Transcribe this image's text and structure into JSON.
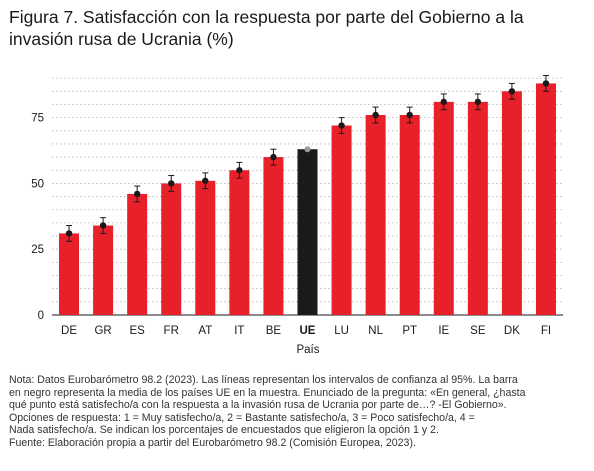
{
  "title": "Figura 7. Satisfacción con la respuesta por parte del Gobierno a la invasión rusa de Ucrania (%)",
  "note": [
    "Nota: Datos Eurobarómetro 98.2 (2023). Las líneas representan los intervalos de confianza al 95%. La barra",
    "en negro representa la media de los países UE en la muestra. Enunciado de la pregunta: «En general, ¿hasta",
    "qué punto está satisfecho/a con la respuesta a la invasión rusa de Ucrania por parte de…? -El Gobierno».",
    "Opciones de respuesta: 1 = Muy satisfecho/a, 2 = Bastante satisfecho/a, 3 = Poco satisfecho/a, 4 =",
    "Nada satisfecho/a. Se indican los porcentajes de encuestados que eligieron la opción 1 y 2.",
    "Fuente: Elaboración propia a partir del Eurobarómetro 98.2 (Comisión Europea, 2023)."
  ],
  "colors": {
    "bar": "#e8202a",
    "highlight": "#1a1a1a",
    "point": "#1a1a1a",
    "grid": "#b0b0b0"
  },
  "chart_data": {
    "type": "bar",
    "title": "Figura 7. Satisfacción con la respuesta por parte del Gobierno a la invasión rusa de Ucrania (%)",
    "xlabel": "País",
    "ylabel": "",
    "ylim": [
      0,
      95
    ],
    "yticks": [
      0,
      25,
      50,
      75
    ],
    "grid": true,
    "legend": "none",
    "categories": [
      "DE",
      "GR",
      "ES",
      "FR",
      "AT",
      "IT",
      "BE",
      "UE",
      "LU",
      "NL",
      "PT",
      "IE",
      "SE",
      "DK",
      "FI"
    ],
    "values": [
      31,
      34,
      46,
      50,
      51,
      55,
      60,
      63,
      72,
      76,
      76,
      81,
      81,
      85,
      88
    ],
    "ci_low": [
      28,
      31,
      43,
      47,
      48,
      52,
      57,
      63,
      69,
      73,
      73,
      78,
      78,
      82,
      85
    ],
    "ci_high": [
      34,
      37,
      49,
      53,
      54,
      58,
      63,
      63,
      75,
      79,
      79,
      84,
      84,
      88,
      91
    ],
    "highlight": "UE"
  }
}
